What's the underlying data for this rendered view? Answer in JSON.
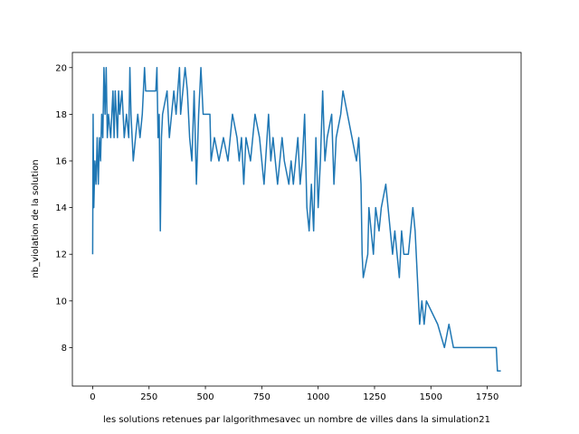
{
  "chart_data": {
    "type": "line",
    "xlabel": "les solutions retenues par lalgorithmesavec un nombre de villes dans la simulation21",
    "ylabel": "nb_violation de la solution",
    "x": [
      0,
      2,
      5,
      10,
      15,
      20,
      25,
      30,
      35,
      40,
      45,
      50,
      55,
      60,
      65,
      70,
      80,
      90,
      95,
      100,
      110,
      115,
      120,
      130,
      140,
      150,
      160,
      165,
      170,
      180,
      190,
      200,
      210,
      220,
      230,
      235,
      280,
      285,
      290,
      295,
      300,
      305,
      310,
      330,
      340,
      350,
      360,
      370,
      385,
      390,
      400,
      410,
      420,
      430,
      440,
      450,
      460,
      470,
      480,
      490,
      520,
      525,
      540,
      560,
      580,
      600,
      620,
      640,
      650,
      660,
      670,
      680,
      700,
      720,
      740,
      760,
      780,
      790,
      800,
      820,
      840,
      850,
      870,
      880,
      890,
      900,
      910,
      920,
      930,
      940,
      950,
      960,
      970,
      980,
      990,
      1000,
      1010,
      1020,
      1030,
      1040,
      1060,
      1070,
      1080,
      1100,
      1110,
      1130,
      1150,
      1170,
      1180,
      1190,
      1195,
      1200,
      1220,
      1225,
      1235,
      1245,
      1255,
      1270,
      1280,
      1300,
      1310,
      1330,
      1340,
      1360,
      1370,
      1380,
      1400,
      1410,
      1420,
      1430,
      1440,
      1450,
      1460,
      1470,
      1480,
      1530,
      1560,
      1580,
      1600,
      1790,
      1795,
      1810
    ],
    "series": [
      {
        "color": "#1f77b4",
        "values": [
          12,
          18,
          14,
          16,
          15,
          17,
          15,
          17,
          16,
          18,
          17,
          20,
          18,
          20,
          17,
          18,
          17,
          19,
          17,
          19,
          17,
          19,
          18,
          19,
          17,
          18,
          17,
          20,
          18,
          16,
          17,
          18,
          17,
          18,
          20,
          19,
          19,
          20,
          17,
          18,
          13,
          17,
          18,
          19,
          17,
          18,
          19,
          18,
          20,
          18,
          19,
          20,
          19,
          17,
          16,
          19,
          15,
          18,
          20,
          18,
          18,
          16,
          17,
          16,
          17,
          16,
          18,
          17,
          16,
          17,
          15,
          17,
          16,
          18,
          17,
          15,
          18,
          16,
          17,
          15,
          17,
          16,
          15,
          16,
          15,
          16,
          17,
          15,
          16,
          18,
          14,
          13,
          15,
          13,
          17,
          14,
          16,
          19,
          16,
          17,
          18,
          15,
          17,
          18,
          19,
          18,
          17,
          16,
          17,
          15,
          12,
          11,
          12,
          14,
          13,
          12,
          14,
          13,
          14,
          15,
          14,
          12,
          13,
          11,
          13,
          12,
          12,
          13,
          14,
          13,
          11,
          9,
          10,
          9,
          10,
          9,
          8,
          9,
          8,
          8,
          7,
          7
        ]
      }
    ],
    "xlim": [
      -90,
      1900
    ],
    "ylim": [
      6.35,
      20.65
    ],
    "xticks": [
      0,
      250,
      500,
      750,
      1000,
      1250,
      1500,
      1750
    ],
    "yticks": [
      8,
      10,
      12,
      14,
      16,
      18,
      20
    ]
  }
}
